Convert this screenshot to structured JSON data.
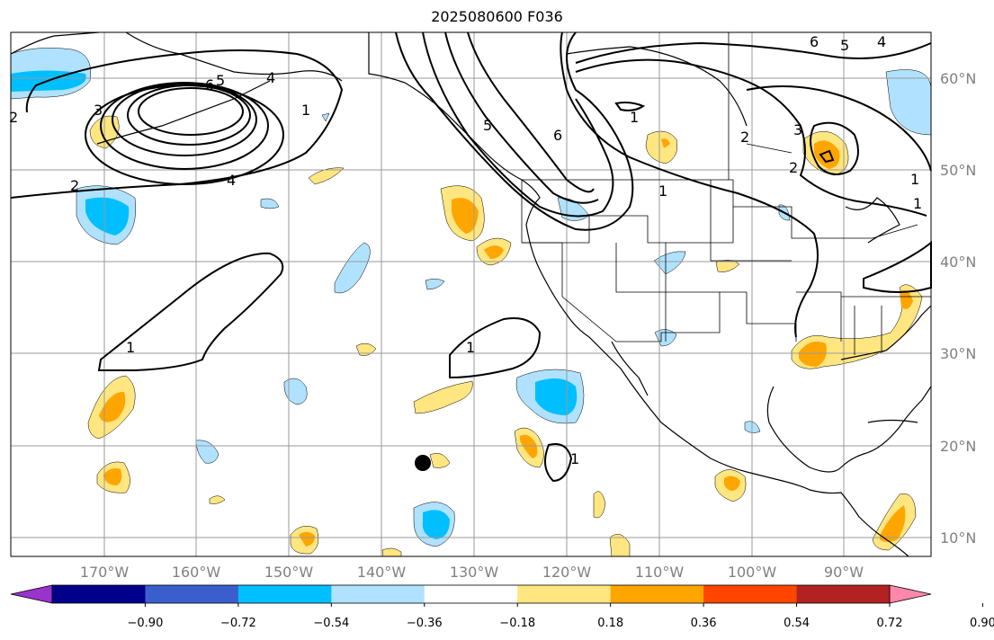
{
  "title": "2025080600 F036",
  "latitude_labels": [
    "60°N",
    "50°N",
    "40°N",
    "30°N",
    "20°N",
    "10°N"
  ],
  "longitude_labels": [
    "170°W",
    "160°W",
    "150°W",
    "140°W",
    "130°W",
    "120°W",
    "110°W",
    "100°W",
    "90°W"
  ],
  "colorbar": {
    "tick_labels": [
      "−0.90",
      "−0.72",
      "−0.54",
      "−0.36",
      "−0.18",
      "0.18",
      "0.36",
      "0.54",
      "0.72",
      "0.90"
    ],
    "colors": [
      "#9933cc",
      "#00008b",
      "#3a5fcd",
      "#00bfff",
      "#b0e2ff",
      "#ffffff",
      "#ffe680",
      "#ffa500",
      "#ff4500",
      "#b22222",
      "#ff88aa"
    ]
  },
  "contour_labels": [
    "6",
    "5",
    "4",
    "3",
    "2",
    "1",
    "4",
    "2",
    "1",
    "1",
    "1",
    "5",
    "6",
    "1",
    "2",
    "1",
    "6",
    "5",
    "4",
    "3",
    "2",
    "1",
    "1"
  ],
  "marker": "black-dot"
}
